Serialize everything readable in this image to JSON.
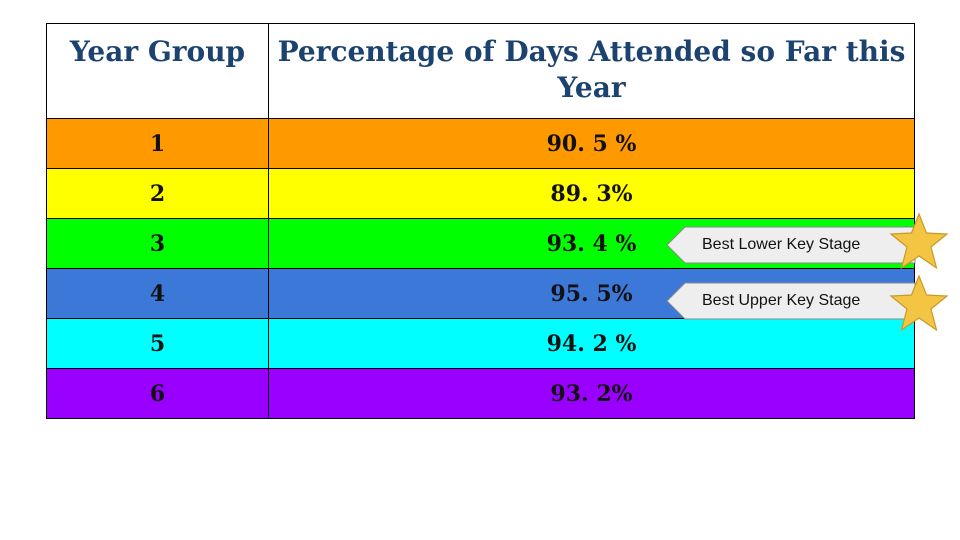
{
  "colors": {
    "header_text": "#1c4270",
    "border": "#000000",
    "callout_fill": "#eeeeee",
    "star_fill": "#f4c542",
    "star_stroke": "#c79a2a"
  },
  "table": {
    "headers": {
      "year_group": "Year Group",
      "percentage": "Percentage of Days Attended so Far this Year"
    },
    "rows": [
      {
        "year": "1",
        "percentage": "90. 5 %",
        "color": "#ff9900"
      },
      {
        "year": "2",
        "percentage": "89. 3%",
        "color": "#ffff00"
      },
      {
        "year": "3",
        "percentage": "93. 4 %",
        "color": "#00ff00"
      },
      {
        "year": "4",
        "percentage": "95. 5%",
        "color": "#3c78d8"
      },
      {
        "year": "5",
        "percentage": "94. 2  %",
        "color": "#00ffff"
      },
      {
        "year": "6",
        "percentage": "93. 2%",
        "color": "#9900ff"
      }
    ]
  },
  "chart_data": {
    "type": "table",
    "columns": [
      "Year Group",
      "Percentage of Days Attended so Far this Year"
    ],
    "rows": [
      [
        "1",
        "90. 5 %"
      ],
      [
        "2",
        "89. 3%"
      ],
      [
        "3",
        "93. 4 %"
      ],
      [
        "4",
        "95. 5%"
      ],
      [
        "5",
        "94. 2  %"
      ],
      [
        "6",
        "93. 2%"
      ]
    ],
    "annotations": [
      {
        "text": "Best Lower Key Stage",
        "row": "3",
        "icon": "star-icon"
      },
      {
        "text": "Best Upper Key Stage",
        "row": "4",
        "icon": "star-icon"
      }
    ]
  },
  "callouts": {
    "lower": {
      "label": "Best Lower Key Stage"
    },
    "upper": {
      "label": "Best Upper Key Stage"
    }
  }
}
